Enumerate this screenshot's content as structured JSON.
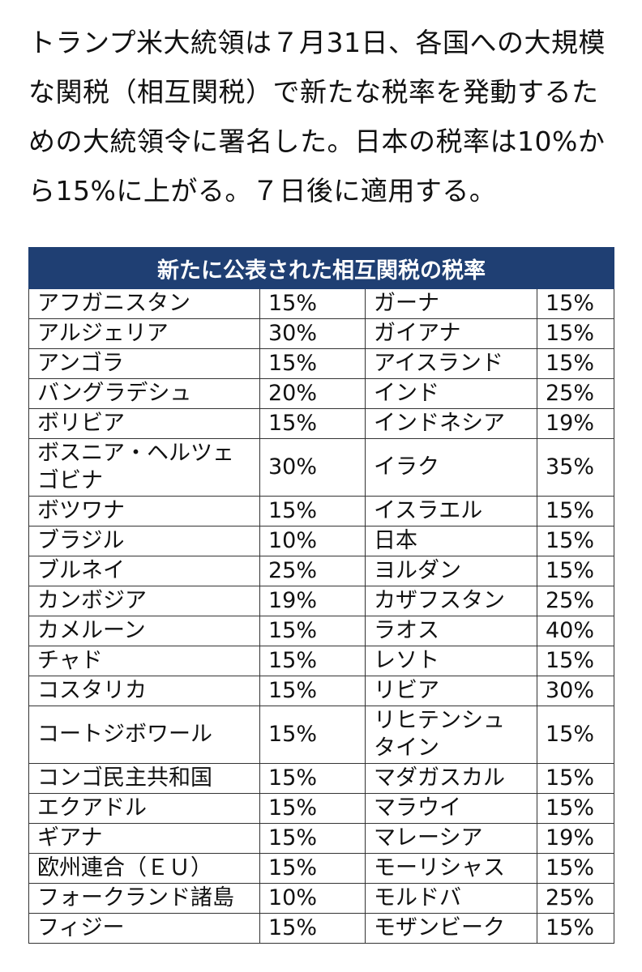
{
  "article": {
    "text": "トランプ米大統領は７月31日、各国への大規模な関税（相互関税）で新たな税率を発動するための大統領令に署名した。日本の税率は10%から15%に上がる。７日後に適用する。"
  },
  "table": {
    "title": "新たに公表された相互関税の税率",
    "rows": [
      [
        "アフガニスタン",
        "15%",
        "ガーナ",
        "15%"
      ],
      [
        "アルジェリア",
        "30%",
        "ガイアナ",
        "15%"
      ],
      [
        "アンゴラ",
        "15%",
        "アイスランド",
        "15%"
      ],
      [
        "バングラデシュ",
        "20%",
        "インド",
        "25%"
      ],
      [
        "ボリビア",
        "15%",
        "インドネシア",
        "19%"
      ],
      [
        "ボスニア・ヘルツェゴビナ",
        "30%",
        "イラク",
        "35%"
      ],
      [
        "ボツワナ",
        "15%",
        "イスラエル",
        "15%"
      ],
      [
        "ブラジル",
        "10%",
        "日本",
        "15%"
      ],
      [
        "ブルネイ",
        "25%",
        "ヨルダン",
        "15%"
      ],
      [
        "カンボジア",
        "19%",
        "カザフスタン",
        "25%"
      ],
      [
        "カメルーン",
        "15%",
        "ラオス",
        "40%"
      ],
      [
        "チャド",
        "15%",
        "レソト",
        "15%"
      ],
      [
        "コスタリカ",
        "15%",
        "リビア",
        "30%"
      ],
      [
        "コートジボワール",
        "15%",
        "リヒテンシュタイン",
        "15%"
      ],
      [
        "コンゴ民主共和国",
        "15%",
        "マダガスカル",
        "15%"
      ],
      [
        "エクアドル",
        "15%",
        "マラウイ",
        "15%"
      ],
      [
        "ギアナ",
        "15%",
        "マレーシア",
        "19%"
      ],
      [
        "欧州連合（ＥＵ）",
        "15%",
        "モーリシャス",
        "15%"
      ],
      [
        "フォークランド諸島",
        "10%",
        "モルドバ",
        "25%"
      ],
      [
        "フィジー",
        "15%",
        "モザンビーク",
        "15%"
      ]
    ]
  }
}
